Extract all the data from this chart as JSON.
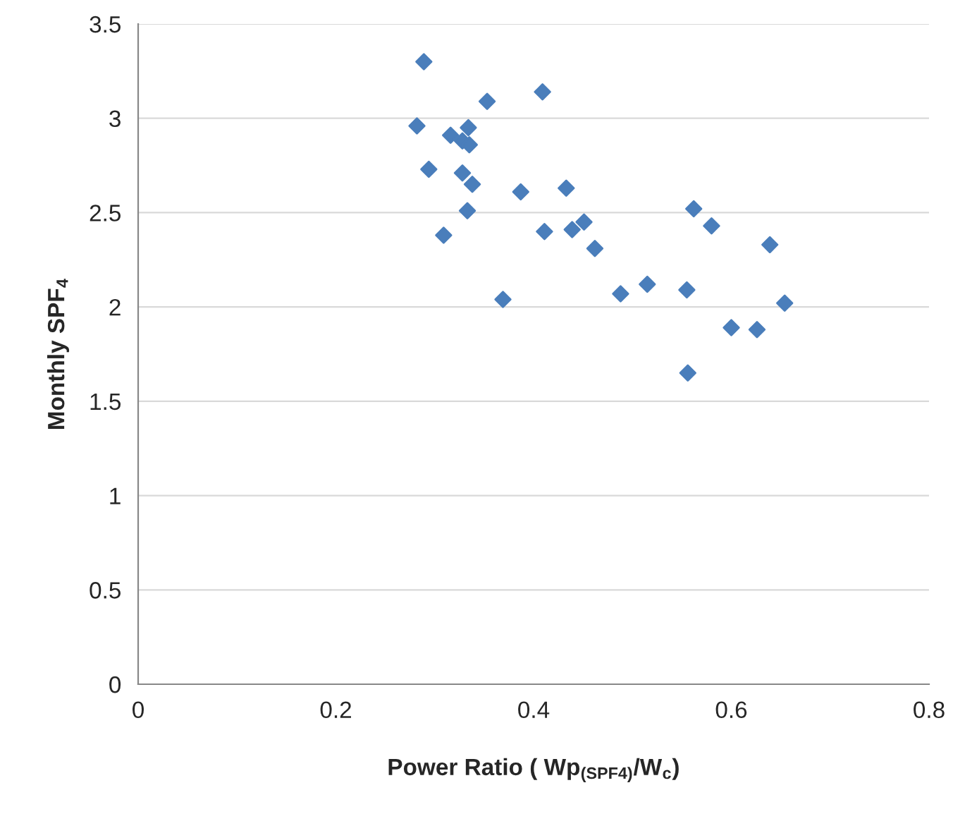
{
  "chart_data": {
    "type": "scatter",
    "xlabel": "Power Ratio ( Wp$_{(SPF4)}$/W$_{c}$)",
    "ylabel": "Monthly SPF$_{4}$",
    "x": [
      0.289,
      0.409,
      0.353,
      0.282,
      0.334,
      0.316,
      0.328,
      0.335,
      0.294,
      0.328,
      0.338,
      0.387,
      0.433,
      0.333,
      0.562,
      0.58,
      0.451,
      0.411,
      0.439,
      0.309,
      0.639,
      0.462,
      0.515,
      0.488,
      0.555,
      0.369,
      0.654,
      0.6,
      0.626,
      0.556
    ],
    "series": [
      {
        "color": "#4a7ebb",
        "values": [
          3.3,
          3.14,
          3.09,
          2.96,
          2.95,
          2.91,
          2.88,
          2.86,
          2.73,
          2.71,
          2.65,
          2.61,
          2.63,
          2.51,
          2.52,
          2.43,
          2.45,
          2.4,
          2.41,
          2.38,
          2.33,
          2.31,
          2.12,
          2.07,
          2.09,
          2.04,
          2.02,
          1.89,
          1.88,
          1.65
        ]
      }
    ],
    "xlim": [
      0,
      0.8
    ],
    "xticks": [
      0,
      0.2,
      0.4,
      0.6,
      0.8
    ],
    "ylim": [
      0,
      3.5
    ],
    "yticks": [
      0,
      0.5,
      1,
      1.5,
      2,
      2.5,
      3,
      3.5
    ],
    "grid": "y",
    "marker": "diamond"
  }
}
